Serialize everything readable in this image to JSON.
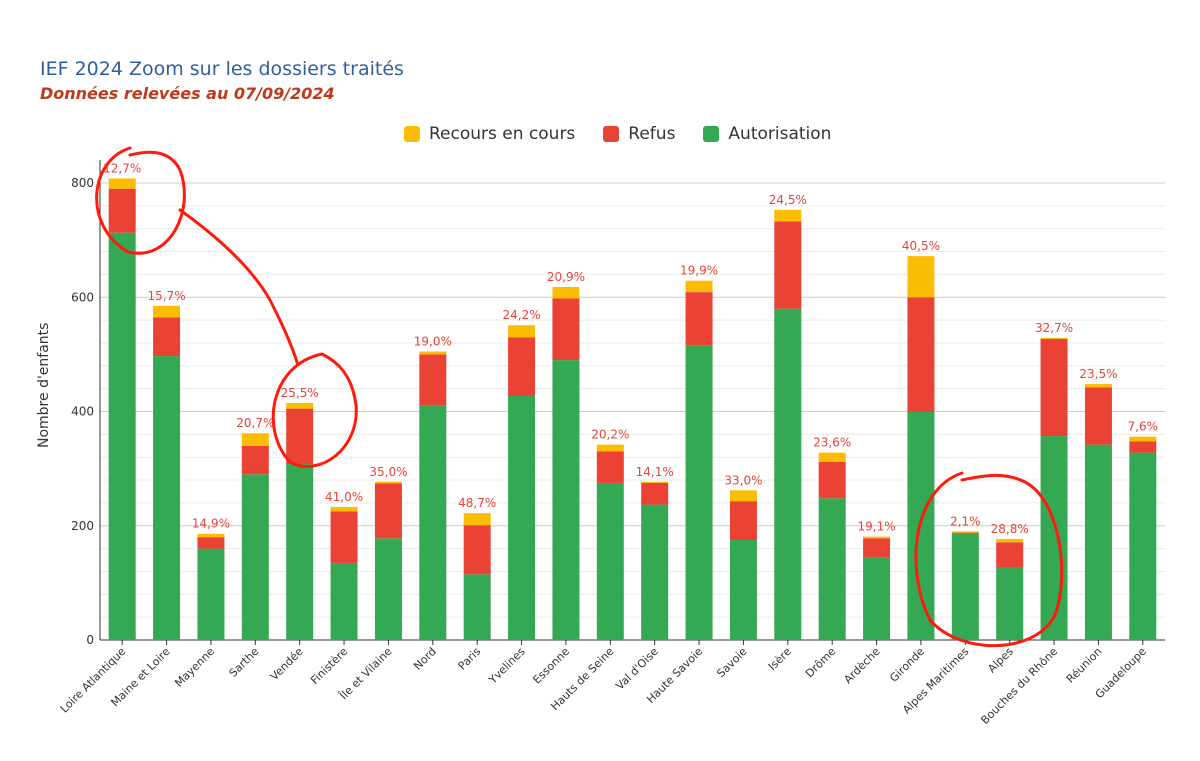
{
  "title": "IEF 2024 Zoom sur les dossiers traités",
  "subtitle": "Données relevées au 07/09/2024",
  "chart_data": {
    "type": "bar",
    "stacked": true,
    "title": "IEF 2024 Zoom sur les dossiers traités",
    "subtitle": "Données relevées au 07/09/2024",
    "xlabel": "",
    "ylabel": "Nombre d'enfants",
    "ylim": [
      0,
      800
    ],
    "yticks": [
      "0",
      "200",
      "400",
      "600",
      "800"
    ],
    "grid": true,
    "legend_position": "top-center",
    "categories": [
      "Loire Atlantique",
      "Maine et Loire",
      "Mayenne",
      "Sarthe",
      "Vendée",
      "Finistère",
      "Île et Vilaine",
      "Nord",
      "Paris",
      "Yvelines",
      "Essonne",
      "Hauts de Seine",
      "Val d'Oise",
      "Haute Savoie",
      "Savoie",
      "Isère",
      "Drôme",
      "Ardèche",
      "Gironde",
      "Alpes Maritimes",
      "Alpes",
      "Bouches du Rhône",
      "Réunion",
      "Guadeloupe"
    ],
    "series": [
      {
        "name": "Autorisation",
        "color": "#34a853",
        "values": [
          713,
          497,
          160,
          290,
          308,
          135,
          178,
          410,
          115,
          428,
          490,
          275,
          237,
          515,
          175,
          580,
          248,
          145,
          400,
          186,
          127,
          357,
          342,
          328
        ]
      },
      {
        "name": "Refus",
        "color": "#ea4335",
        "values": [
          77,
          68,
          20,
          50,
          97,
          90,
          96,
          90,
          86,
          102,
          108,
          55,
          38,
          94,
          68,
          153,
          64,
          33,
          200,
          2,
          44,
          170,
          100,
          20
        ]
      },
      {
        "name": "Recours en cours",
        "color": "#fbbc04",
        "values": [
          18,
          20,
          6,
          22,
          10,
          8,
          3,
          5,
          21,
          21,
          20,
          12,
          2,
          20,
          19,
          20,
          16,
          3,
          72,
          2,
          6,
          2,
          6,
          8
        ]
      }
    ],
    "labels": [
      "12,7%",
      "15,7%",
      "14,9%",
      "20,7%",
      "25,5%",
      "41,0%",
      "35,0%",
      "19,0%",
      "48,7%",
      "24,2%",
      "20,9%",
      "20,2%",
      "14,1%",
      "19,9%",
      "33,0%",
      "24,5%",
      "23,6%",
      "19,1%",
      "40,5%",
      "2,1%",
      "28,8%",
      "32,7%",
      "23,5%",
      "7,6%"
    ]
  }
}
